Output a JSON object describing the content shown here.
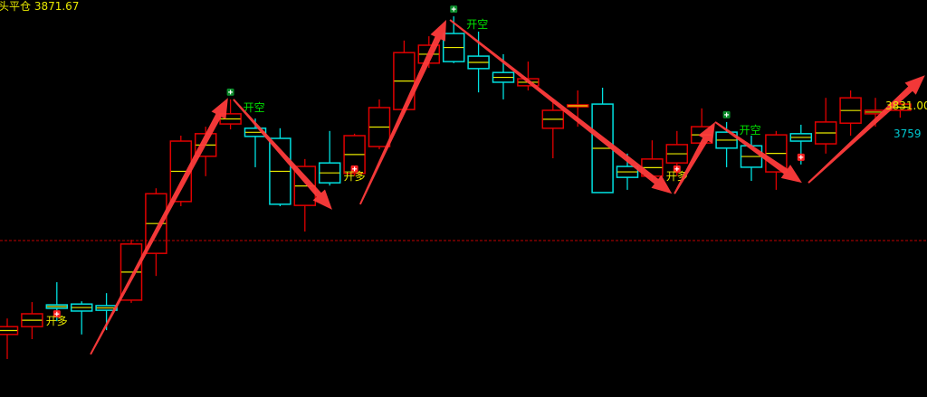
{
  "header": {
    "label": "头平仓 3871.67"
  },
  "right_labels": {
    "price_yellow": "3831.00",
    "price_cyan": "3759"
  },
  "colors": {
    "up": "#e00000",
    "down": "#00e0e0",
    "midline": "#e8e800",
    "arrow": "#ff3b3b",
    "long_text": "#e8e800",
    "short_text": "#00e000",
    "dashed_line": "#c00000"
  },
  "chart_data": {
    "type": "candlestick",
    "title": "",
    "ohlc": [
      [
        3242,
        3283,
        3179,
        3262
      ],
      [
        3262,
        3325,
        3230,
        3295
      ],
      [
        3318,
        3376,
        3276,
        3309
      ],
      [
        3320,
        3327,
        3242,
        3302
      ],
      [
        3316,
        3348,
        3253,
        3304
      ],
      [
        3330,
        3485,
        3323,
        3474
      ],
      [
        3450,
        3617,
        3392,
        3603
      ],
      [
        3583,
        3752,
        3571,
        3738
      ],
      [
        3699,
        3775,
        3648,
        3757
      ],
      [
        3782,
        3845,
        3768,
        3808
      ],
      [
        3771,
        3796,
        3671,
        3750
      ],
      [
        3745,
        3771,
        3571,
        3576
      ],
      [
        3573,
        3692,
        3506,
        3673
      ],
      [
        3682,
        3764,
        3624,
        3631
      ],
      [
        3655,
        3757,
        3648,
        3752
      ],
      [
        3724,
        3845,
        3717,
        3824
      ],
      [
        3819,
        3996,
        3810,
        3965
      ],
      [
        3938,
        4007,
        3926,
        3984
      ],
      [
        4014,
        4058,
        3938,
        3942
      ],
      [
        3956,
        4019,
        3863,
        3924
      ],
      [
        3914,
        3961,
        3845,
        3889
      ],
      [
        3880,
        3942,
        3868,
        3898
      ],
      [
        3771,
        3845,
        3694,
        3817
      ],
      [
        3826,
        3868,
        3775,
        3831
      ],
      [
        3833,
        3875,
        3606,
        3606
      ],
      [
        3673,
        3706,
        3613,
        3645
      ],
      [
        3648,
        3740,
        3636,
        3692
      ],
      [
        3682,
        3764,
        3648,
        3729
      ],
      [
        3733,
        3822,
        3717,
        3775
      ],
      [
        3761,
        3787,
        3671,
        3720
      ],
      [
        3726,
        3752,
        3636,
        3671
      ],
      [
        3659,
        3764,
        3613,
        3754
      ],
      [
        3757,
        3780,
        3678,
        3738
      ],
      [
        3731,
        3849,
        3706,
        3787
      ],
      [
        3784,
        3868,
        3752,
        3849
      ],
      [
        3808,
        3849,
        3775,
        3817
      ],
      [
        3817,
        3856,
        3798,
        3833
      ]
    ],
    "reference_line": 3483,
    "signals": [
      {
        "index": 2,
        "type": "long",
        "label": "开多"
      },
      {
        "index": 9,
        "type": "short",
        "label": "开空"
      },
      {
        "index": 14,
        "type": "long",
        "label": "开多"
      },
      {
        "index": 18,
        "type": "short",
        "label": "开空"
      },
      {
        "index": 27,
        "type": "long",
        "label": "开多"
      },
      {
        "index": 29,
        "type": "short",
        "label": "开空"
      },
      {
        "index": 32,
        "type": "long",
        "label": ""
      }
    ],
    "arrows": [
      [
        [
          3.36,
          3191
        ],
        [
          8.9,
          3849
        ]
      ],
      [
        [
          9.12,
          3845
        ],
        [
          13.1,
          3562
        ]
      ],
      [
        [
          14.23,
          3576
        ],
        [
          17.7,
          4049
        ]
      ],
      [
        [
          17.85,
          4049
        ],
        [
          26.8,
          3603
        ]
      ],
      [
        [
          26.9,
          3603
        ],
        [
          28.54,
          3787
        ]
      ],
      [
        [
          28.54,
          3787
        ],
        [
          32.04,
          3631
        ]
      ],
      [
        [
          32.3,
          3631
        ],
        [
          37.0,
          3907
        ]
      ]
    ]
  }
}
